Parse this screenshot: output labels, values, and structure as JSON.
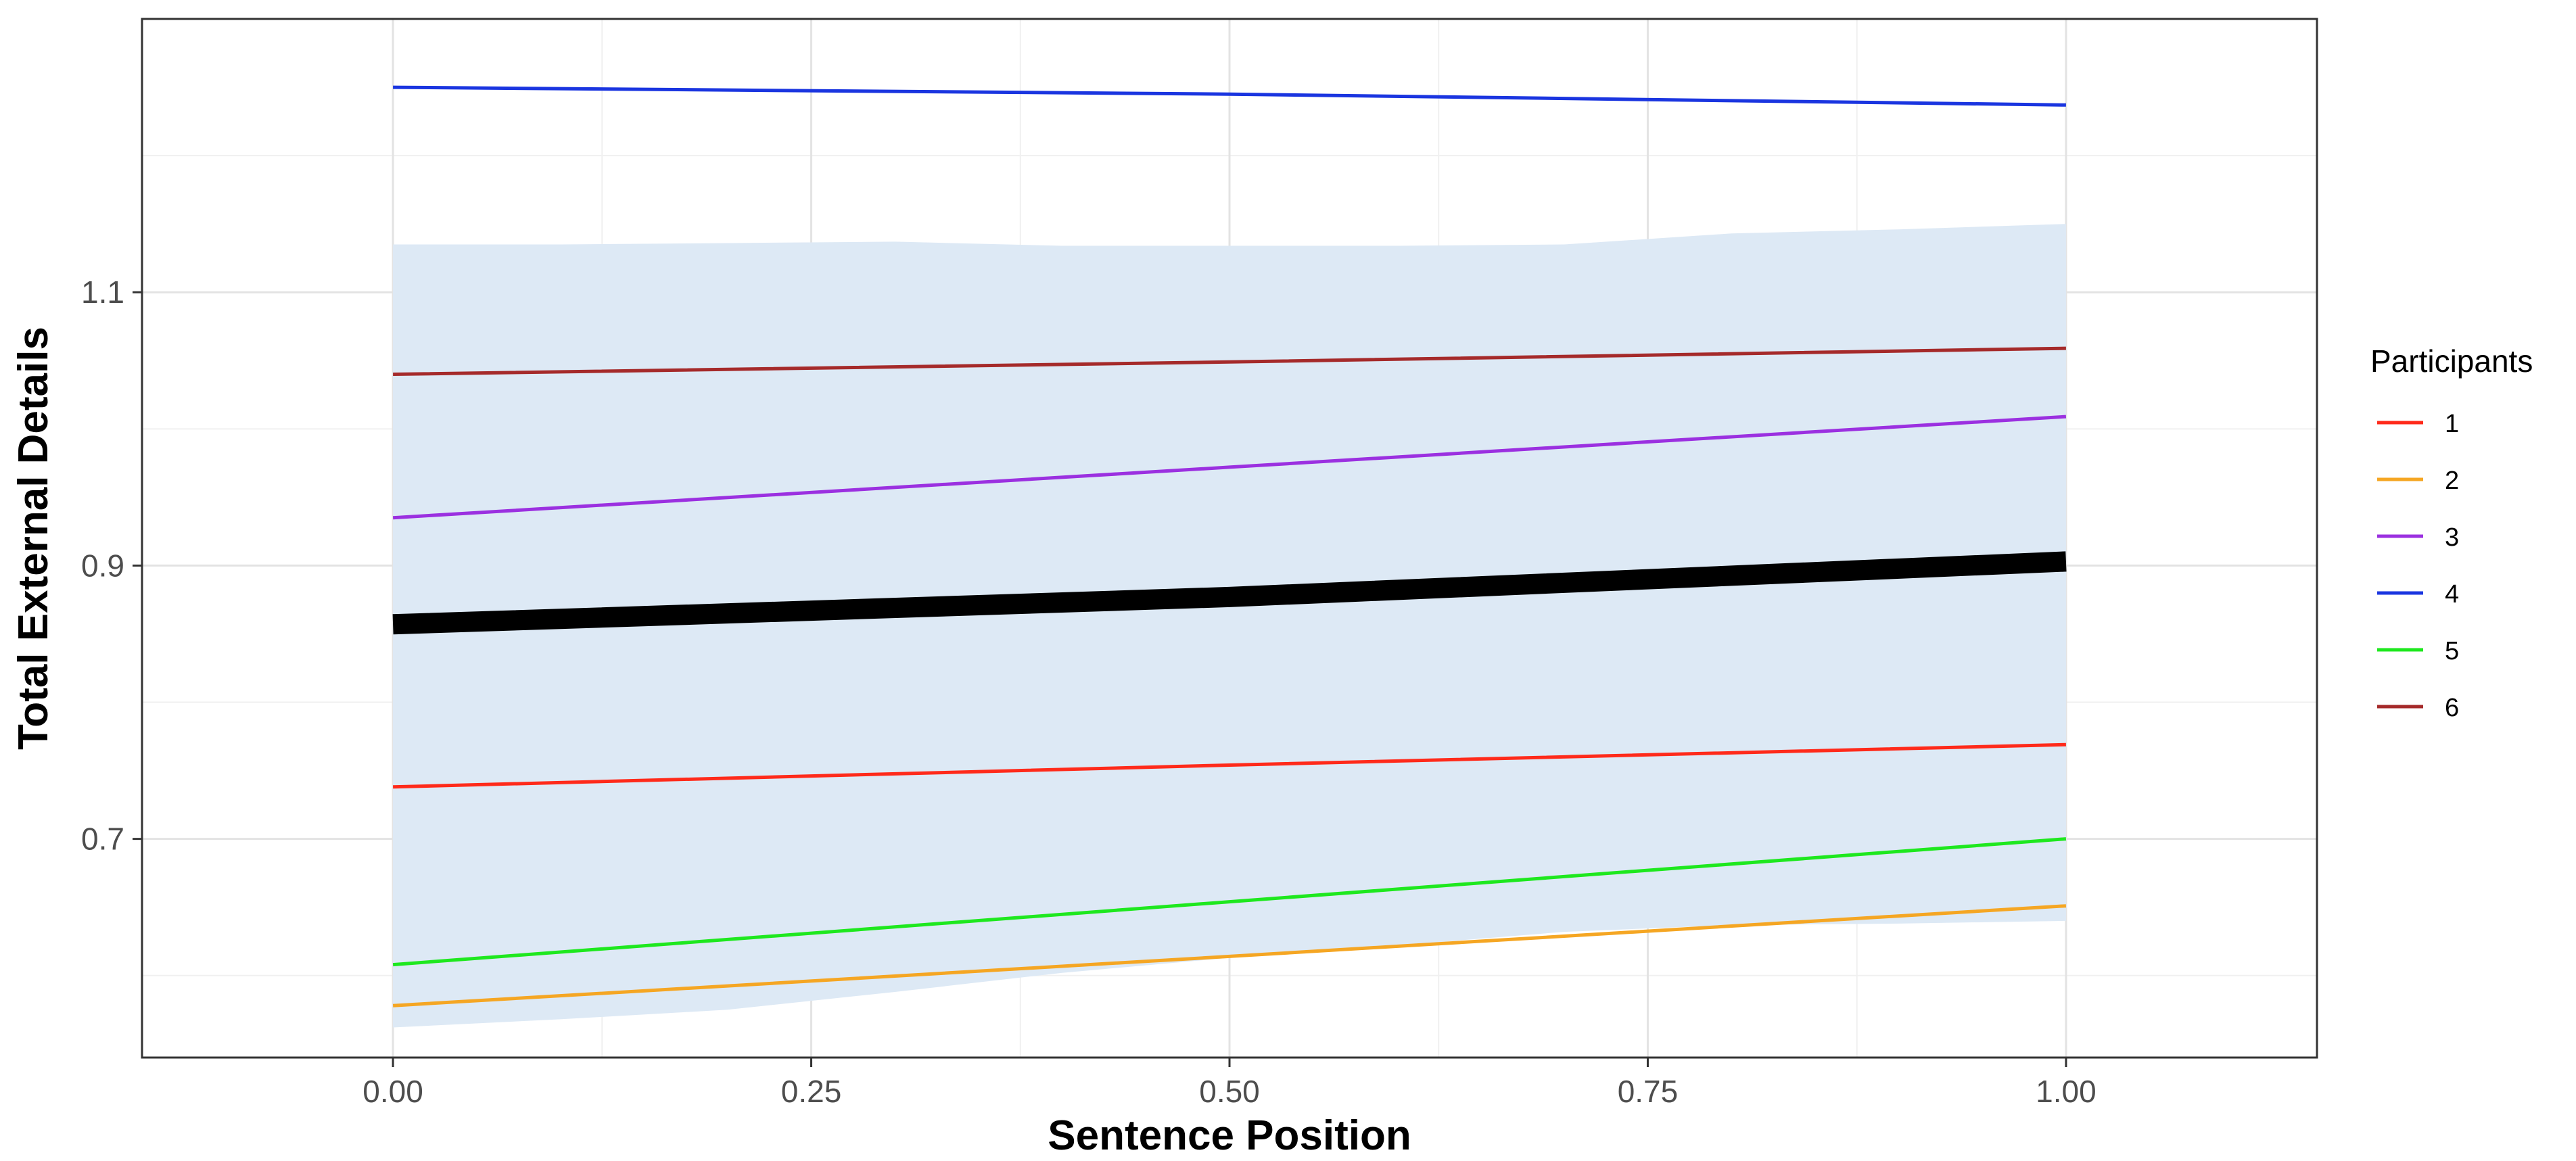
{
  "chart_data": {
    "type": "line",
    "title": "",
    "xlabel": "Sentence Position",
    "ylabel": "Total External Details",
    "xlim": [
      -0.15,
      1.15
    ],
    "ylim": [
      0.54,
      1.3
    ],
    "x_ticks": [
      0.0,
      0.25,
      0.5,
      0.75,
      1.0
    ],
    "x_tick_labels": [
      "0.00",
      "0.25",
      "0.50",
      "0.75",
      "1.00"
    ],
    "y_ticks": [
      0.7,
      0.9,
      1.1
    ],
    "y_tick_labels": [
      "0.7",
      "0.9",
      "1.1"
    ],
    "y_minor_ticks": [
      0.6,
      0.8,
      1.0,
      1.2
    ],
    "x_minor_ticks": [
      0.125,
      0.375,
      0.625,
      0.875
    ],
    "grid": true,
    "legend": {
      "title": "Participants",
      "position": "right"
    },
    "ribbon": {
      "color": "#dde9f5",
      "x": [
        0.0,
        0.1,
        0.2,
        0.3,
        0.4,
        0.5,
        0.6,
        0.7,
        0.8,
        0.9,
        1.0
      ],
      "upper": [
        1.135,
        1.135,
        1.136,
        1.137,
        1.134,
        1.134,
        1.134,
        1.135,
        1.143,
        1.146,
        1.15
      ],
      "lower": [
        0.562,
        0.568,
        0.575,
        0.588,
        0.602,
        0.613,
        0.622,
        0.632,
        0.637,
        0.638,
        0.64
      ]
    },
    "series": [
      {
        "name": "1",
        "color": "#ff2a1a",
        "x": [
          0,
          0.5,
          1
        ],
        "y": [
          0.738,
          0.754,
          0.769
        ]
      },
      {
        "name": "2",
        "color": "#f5a623",
        "x": [
          0,
          0.5,
          1
        ],
        "y": [
          0.578,
          0.614,
          0.651
        ]
      },
      {
        "name": "3",
        "color": "#9b30e0",
        "x": [
          0,
          0.5,
          1
        ],
        "y": [
          0.935,
          0.972,
          1.009
        ]
      },
      {
        "name": "4",
        "color": "#1a35e0",
        "x": [
          0,
          0.5,
          1
        ],
        "y": [
          1.25,
          1.245,
          1.237
        ]
      },
      {
        "name": "5",
        "color": "#1ee81e",
        "x": [
          0,
          0.5,
          1
        ],
        "y": [
          0.608,
          0.654,
          0.7
        ]
      },
      {
        "name": "6",
        "color": "#a52a2a",
        "x": [
          0,
          0.5,
          1
        ],
        "y": [
          1.04,
          1.049,
          1.059
        ]
      }
    ],
    "mean_line": {
      "color": "#000000",
      "x": [
        0,
        0.5,
        1
      ],
      "y": [
        0.857,
        0.877,
        0.903
      ]
    }
  }
}
